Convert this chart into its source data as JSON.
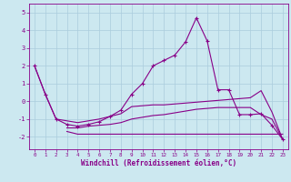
{
  "x": [
    0,
    1,
    2,
    3,
    4,
    5,
    6,
    7,
    8,
    9,
    10,
    11,
    12,
    13,
    14,
    15,
    16,
    17,
    18,
    19,
    20,
    21,
    22,
    23
  ],
  "line1": [
    2.0,
    0.4,
    -1.0,
    -1.1,
    -1.2,
    -1.1,
    -1.0,
    -0.85,
    -0.7,
    -0.3,
    -0.25,
    -0.2,
    -0.2,
    -0.15,
    -0.1,
    -0.05,
    0.0,
    0.05,
    0.1,
    0.15,
    0.2,
    0.6,
    -0.6,
    -2.15
  ],
  "line2": [
    null,
    null,
    null,
    -1.5,
    -1.5,
    -1.4,
    -1.35,
    -1.3,
    -1.2,
    -1.0,
    -0.9,
    -0.8,
    -0.75,
    -0.65,
    -0.55,
    -0.45,
    -0.4,
    -0.35,
    -0.35,
    -0.35,
    -0.35,
    -0.75,
    -1.0,
    -2.15
  ],
  "line3": [
    null,
    null,
    null,
    -1.7,
    -1.85,
    -1.85,
    -1.85,
    -1.85,
    -1.85,
    -1.85,
    -1.85,
    -1.85,
    -1.85,
    -1.85,
    -1.85,
    -1.85,
    -1.85,
    -1.85,
    -1.85,
    -1.85,
    -1.85,
    -1.85,
    -1.85,
    -1.85
  ],
  "line4": [
    2.0,
    0.4,
    -1.0,
    -1.3,
    -1.4,
    -1.3,
    -1.15,
    -0.85,
    -0.5,
    0.4,
    1.0,
    2.0,
    2.3,
    2.6,
    3.35,
    4.7,
    3.4,
    0.65,
    0.65,
    -0.75,
    -0.75,
    -0.7,
    -1.35,
    -2.15
  ],
  "line_color": "#880088",
  "bg_color": "#cce8f0",
  "grid_color": "#aaccdd",
  "xlabel": "Windchill (Refroidissement éolien,°C)",
  "xlim": [
    -0.5,
    23.5
  ],
  "ylim": [
    -2.7,
    5.5
  ],
  "yticks": [
    -2,
    -1,
    0,
    1,
    2,
    3,
    4,
    5
  ],
  "xticks": [
    0,
    1,
    2,
    3,
    4,
    5,
    6,
    7,
    8,
    9,
    10,
    11,
    12,
    13,
    14,
    15,
    16,
    17,
    18,
    19,
    20,
    21,
    22,
    23
  ]
}
